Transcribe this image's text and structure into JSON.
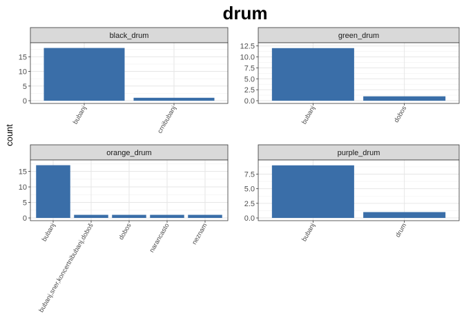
{
  "chart_data": {
    "type": "bar",
    "title": "drum",
    "xlabel": "",
    "ylabel": "count",
    "bar_color": "#3a6ea8",
    "facets": [
      {
        "name": "black_drum",
        "categories": [
          "bubanj",
          "crnibubanj"
        ],
        "values": [
          18,
          1
        ],
        "ylim": [
          0,
          18.85
        ],
        "yticks": [
          0,
          5,
          10,
          15
        ],
        "ytick_labels": [
          "0",
          "5",
          "10",
          "15"
        ]
      },
      {
        "name": "green_drum",
        "categories": [
          "bubanj",
          "dobos"
        ],
        "values": [
          12,
          1
        ],
        "ylim": [
          0,
          12.6
        ],
        "yticks": [
          0,
          2.5,
          5,
          7.5,
          10,
          12.5
        ],
        "ytick_labels": [
          "0.0",
          "2.5",
          "5.0",
          "7.5",
          "10.0",
          "12.5"
        ]
      },
      {
        "name": "orange_drum",
        "categories": [
          "bubanj",
          "bubanj,sner,koncertnibubanj,doboš",
          "dobos",
          "narancasto",
          "neznam"
        ],
        "values": [
          17,
          1,
          1,
          1,
          1
        ],
        "ylim": [
          0,
          17.8
        ],
        "yticks": [
          0,
          5,
          10,
          15
        ],
        "ytick_labels": [
          "0",
          "5",
          "10",
          "15"
        ]
      },
      {
        "name": "purple_drum",
        "categories": [
          "bubanj",
          "drum"
        ],
        "values": [
          9,
          1
        ],
        "ylim": [
          0,
          9.45
        ],
        "yticks": [
          0,
          2.5,
          5,
          7.5
        ],
        "ytick_labels": [
          "0.0",
          "2.5",
          "5.0",
          "7.5"
        ]
      }
    ]
  }
}
